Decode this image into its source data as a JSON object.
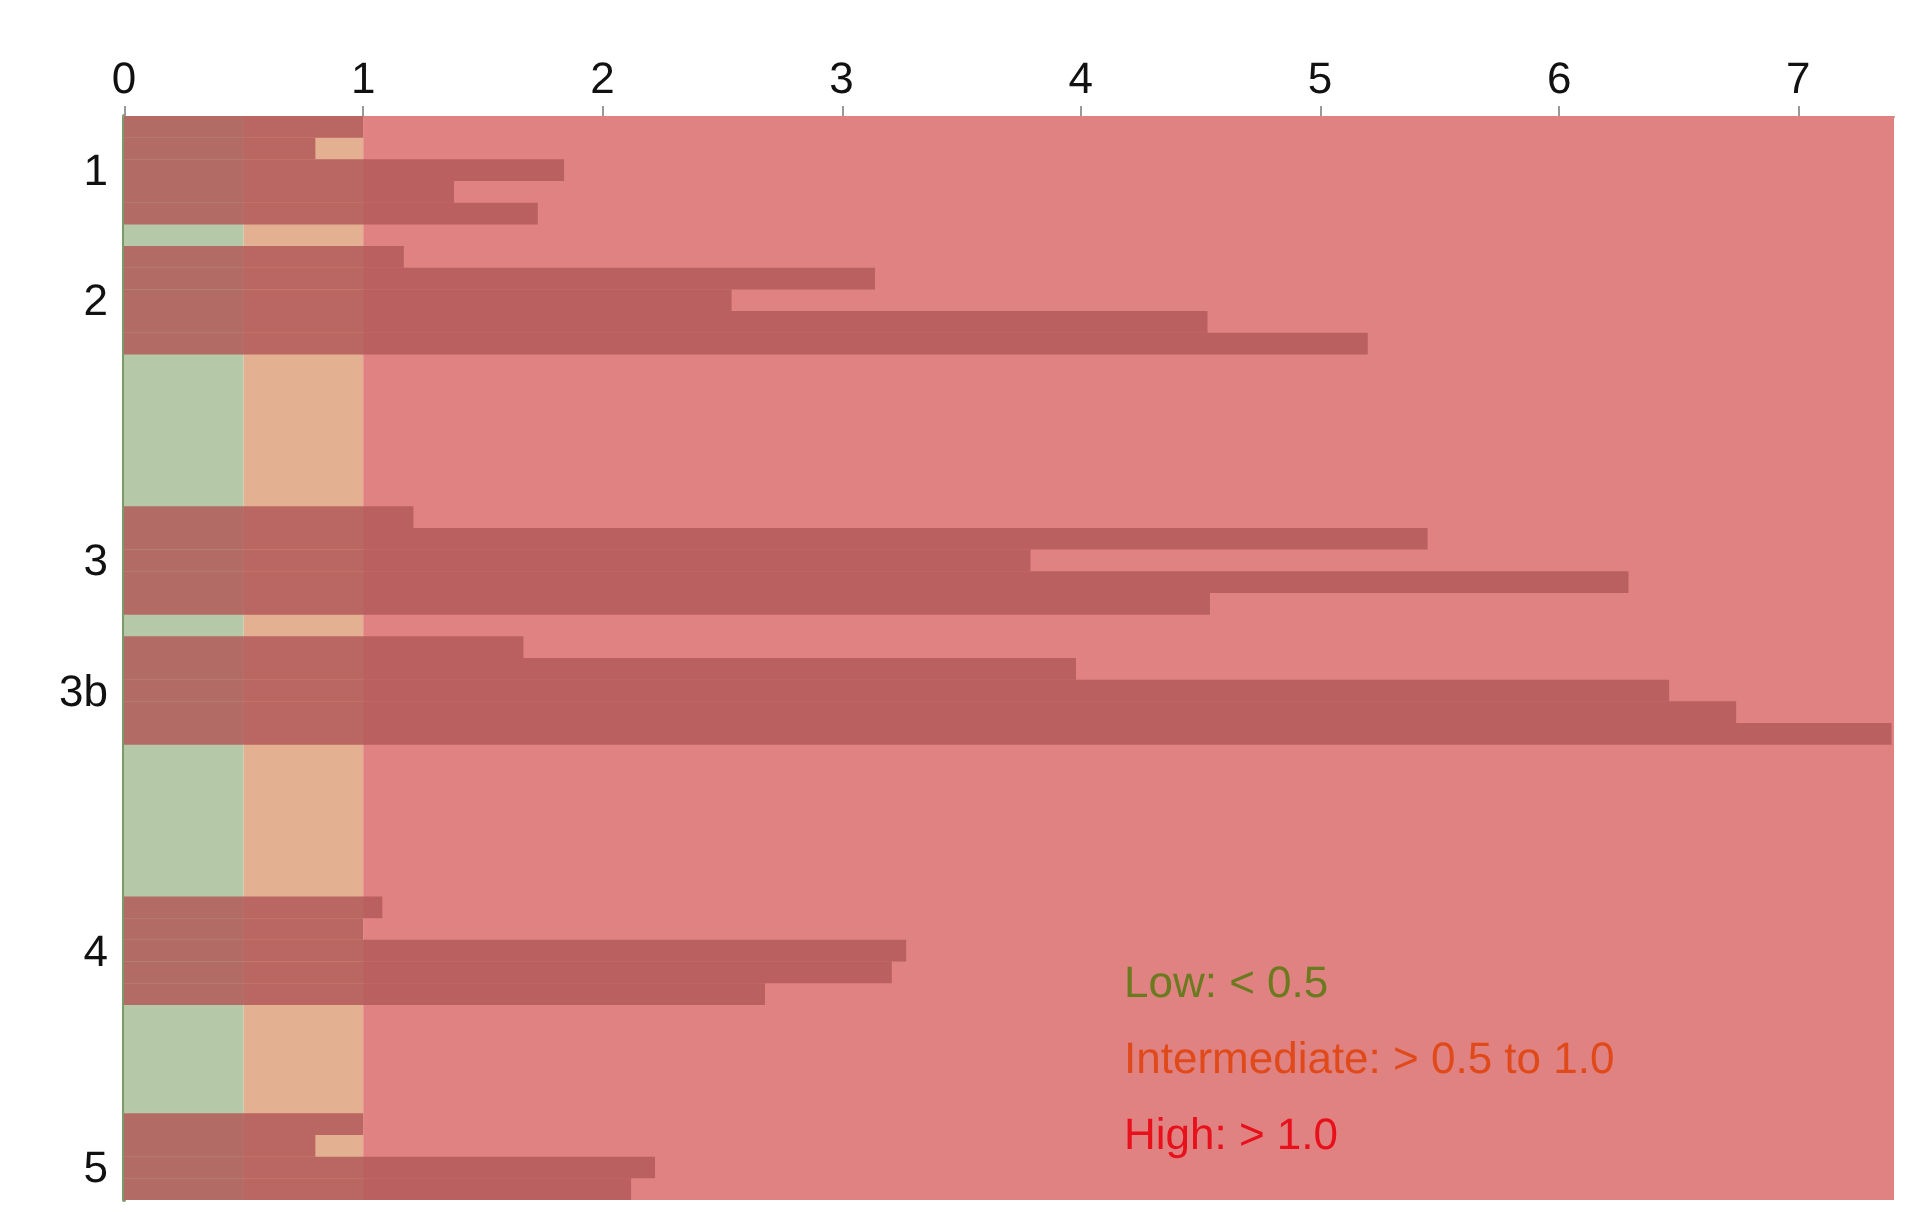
{
  "chart_data": {
    "type": "bar",
    "orientation": "horizontal",
    "categories": [
      null,
      null,
      "1",
      null,
      null,
      null,
      null,
      null,
      "2",
      null,
      null,
      null,
      null,
      null,
      null,
      null,
      null,
      null,
      null,
      null,
      "3",
      null,
      null,
      null,
      null,
      null,
      "3b",
      null,
      null,
      null,
      null,
      null,
      null,
      null,
      null,
      null,
      null,
      null,
      "4",
      null,
      null,
      null,
      null,
      null,
      null,
      null,
      null,
      null,
      "5",
      null
    ],
    "series": [
      {
        "color": "#b35a5a",
        "values": [
          1.0,
          0.8,
          1.84,
          1.38,
          1.73,
          null,
          1.17,
          3.14,
          2.54,
          4.53,
          5.2,
          null,
          null,
          null,
          null,
          null,
          null,
          null,
          1.21,
          5.45,
          3.79,
          6.29,
          4.54,
          null,
          1.67,
          3.98,
          6.46,
          6.74,
          7.39,
          null,
          null,
          null,
          null,
          null,
          null,
          null,
          1.08,
          1.0,
          3.27,
          3.21,
          2.68,
          null,
          null,
          null,
          null,
          null,
          1.0,
          0.8,
          2.22,
          2.12
        ]
      }
    ],
    "xlim": [
      0,
      7.4
    ],
    "xticks": [
      0,
      1,
      2,
      3,
      4,
      5,
      6,
      7
    ],
    "bands": [
      {
        "axis": "x",
        "from": 0,
        "to": 0.5,
        "color": "#b5c9a8"
      },
      {
        "axis": "x",
        "from": 0.5,
        "to": 1.0,
        "color": "#e3b092"
      },
      {
        "axis": "x",
        "from": 1.0,
        "to": 7.4,
        "color": "#e08282"
      }
    ],
    "annotations": [
      "Low: < 0.5",
      "Intermediate: > 0.5 to 1.0",
      "High: > 1.0"
    ]
  }
}
